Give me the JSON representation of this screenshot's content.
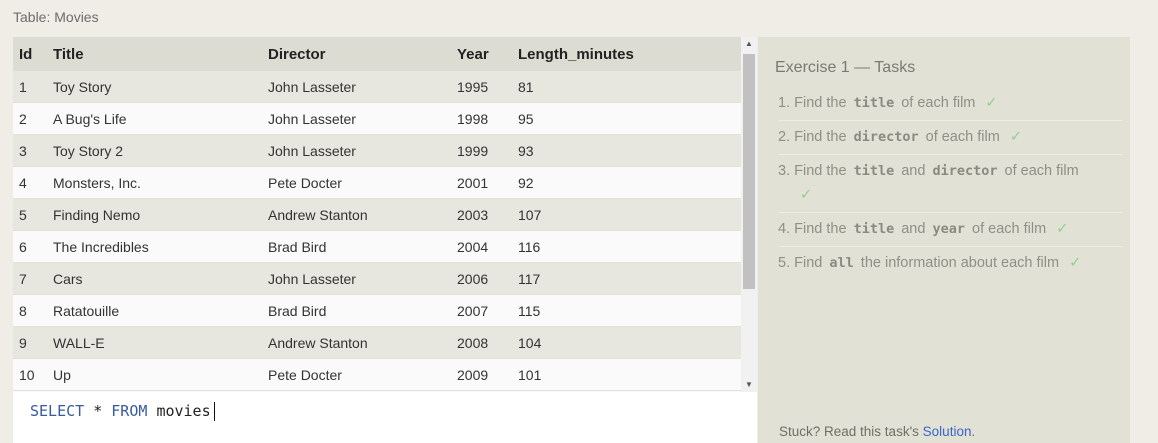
{
  "table_caption": "Table: Movies",
  "table": {
    "headers": [
      "Id",
      "Title",
      "Director",
      "Year",
      "Length_minutes"
    ],
    "rows": [
      [
        "1",
        "Toy Story",
        "John Lasseter",
        "1995",
        "81"
      ],
      [
        "2",
        "A Bug's Life",
        "John Lasseter",
        "1998",
        "95"
      ],
      [
        "3",
        "Toy Story 2",
        "John Lasseter",
        "1999",
        "93"
      ],
      [
        "4",
        "Monsters, Inc.",
        "Pete Docter",
        "2001",
        "92"
      ],
      [
        "5",
        "Finding Nemo",
        "Andrew Stanton",
        "2003",
        "107"
      ],
      [
        "6",
        "The Incredibles",
        "Brad Bird",
        "2004",
        "116"
      ],
      [
        "7",
        "Cars",
        "John Lasseter",
        "2006",
        "117"
      ],
      [
        "8",
        "Ratatouille",
        "Brad Bird",
        "2007",
        "115"
      ],
      [
        "9",
        "WALL-E",
        "Andrew Stanton",
        "2008",
        "104"
      ],
      [
        "10",
        "Up",
        "Pete Docter",
        "2009",
        "101"
      ]
    ]
  },
  "scrollbar": {
    "up_icon": "triangle-up-icon",
    "down_icon": "triangle-down-icon"
  },
  "editor": {
    "kw_select": "SELECT",
    "star": "*",
    "kw_from": "FROM",
    "table_name": "movies"
  },
  "exercise": {
    "title": "Exercise 1 — Tasks",
    "tasks": [
      {
        "num": "1.",
        "a": "Find the",
        "code1": "title",
        "b": "of each film",
        "code2": "",
        "c": "",
        "check": "✓"
      },
      {
        "num": "2.",
        "a": "Find the",
        "code1": "director",
        "b": "of each film",
        "code2": "",
        "c": "",
        "check": "✓"
      },
      {
        "num": "3.",
        "a": "Find the",
        "code1": "title",
        "b": "and",
        "code2": "director",
        "c": "of each film",
        "check": "✓"
      },
      {
        "num": "4.",
        "a": "Find the",
        "code1": "title",
        "b": "and",
        "code2": "year",
        "c": "of each film",
        "check": "✓"
      },
      {
        "num": "5.",
        "a": "Find",
        "code1": "all",
        "b": "the information about each film",
        "code2": "",
        "c": "",
        "check": "✓"
      }
    ],
    "stuck_text": "Stuck? Read this task's",
    "solution_link": "Solution",
    "stuck_period": "."
  },
  "colors": {
    "accent_link": "#3a64c8",
    "check_green": "#8fd08f",
    "sql_keyword": "#3a5aa0"
  }
}
